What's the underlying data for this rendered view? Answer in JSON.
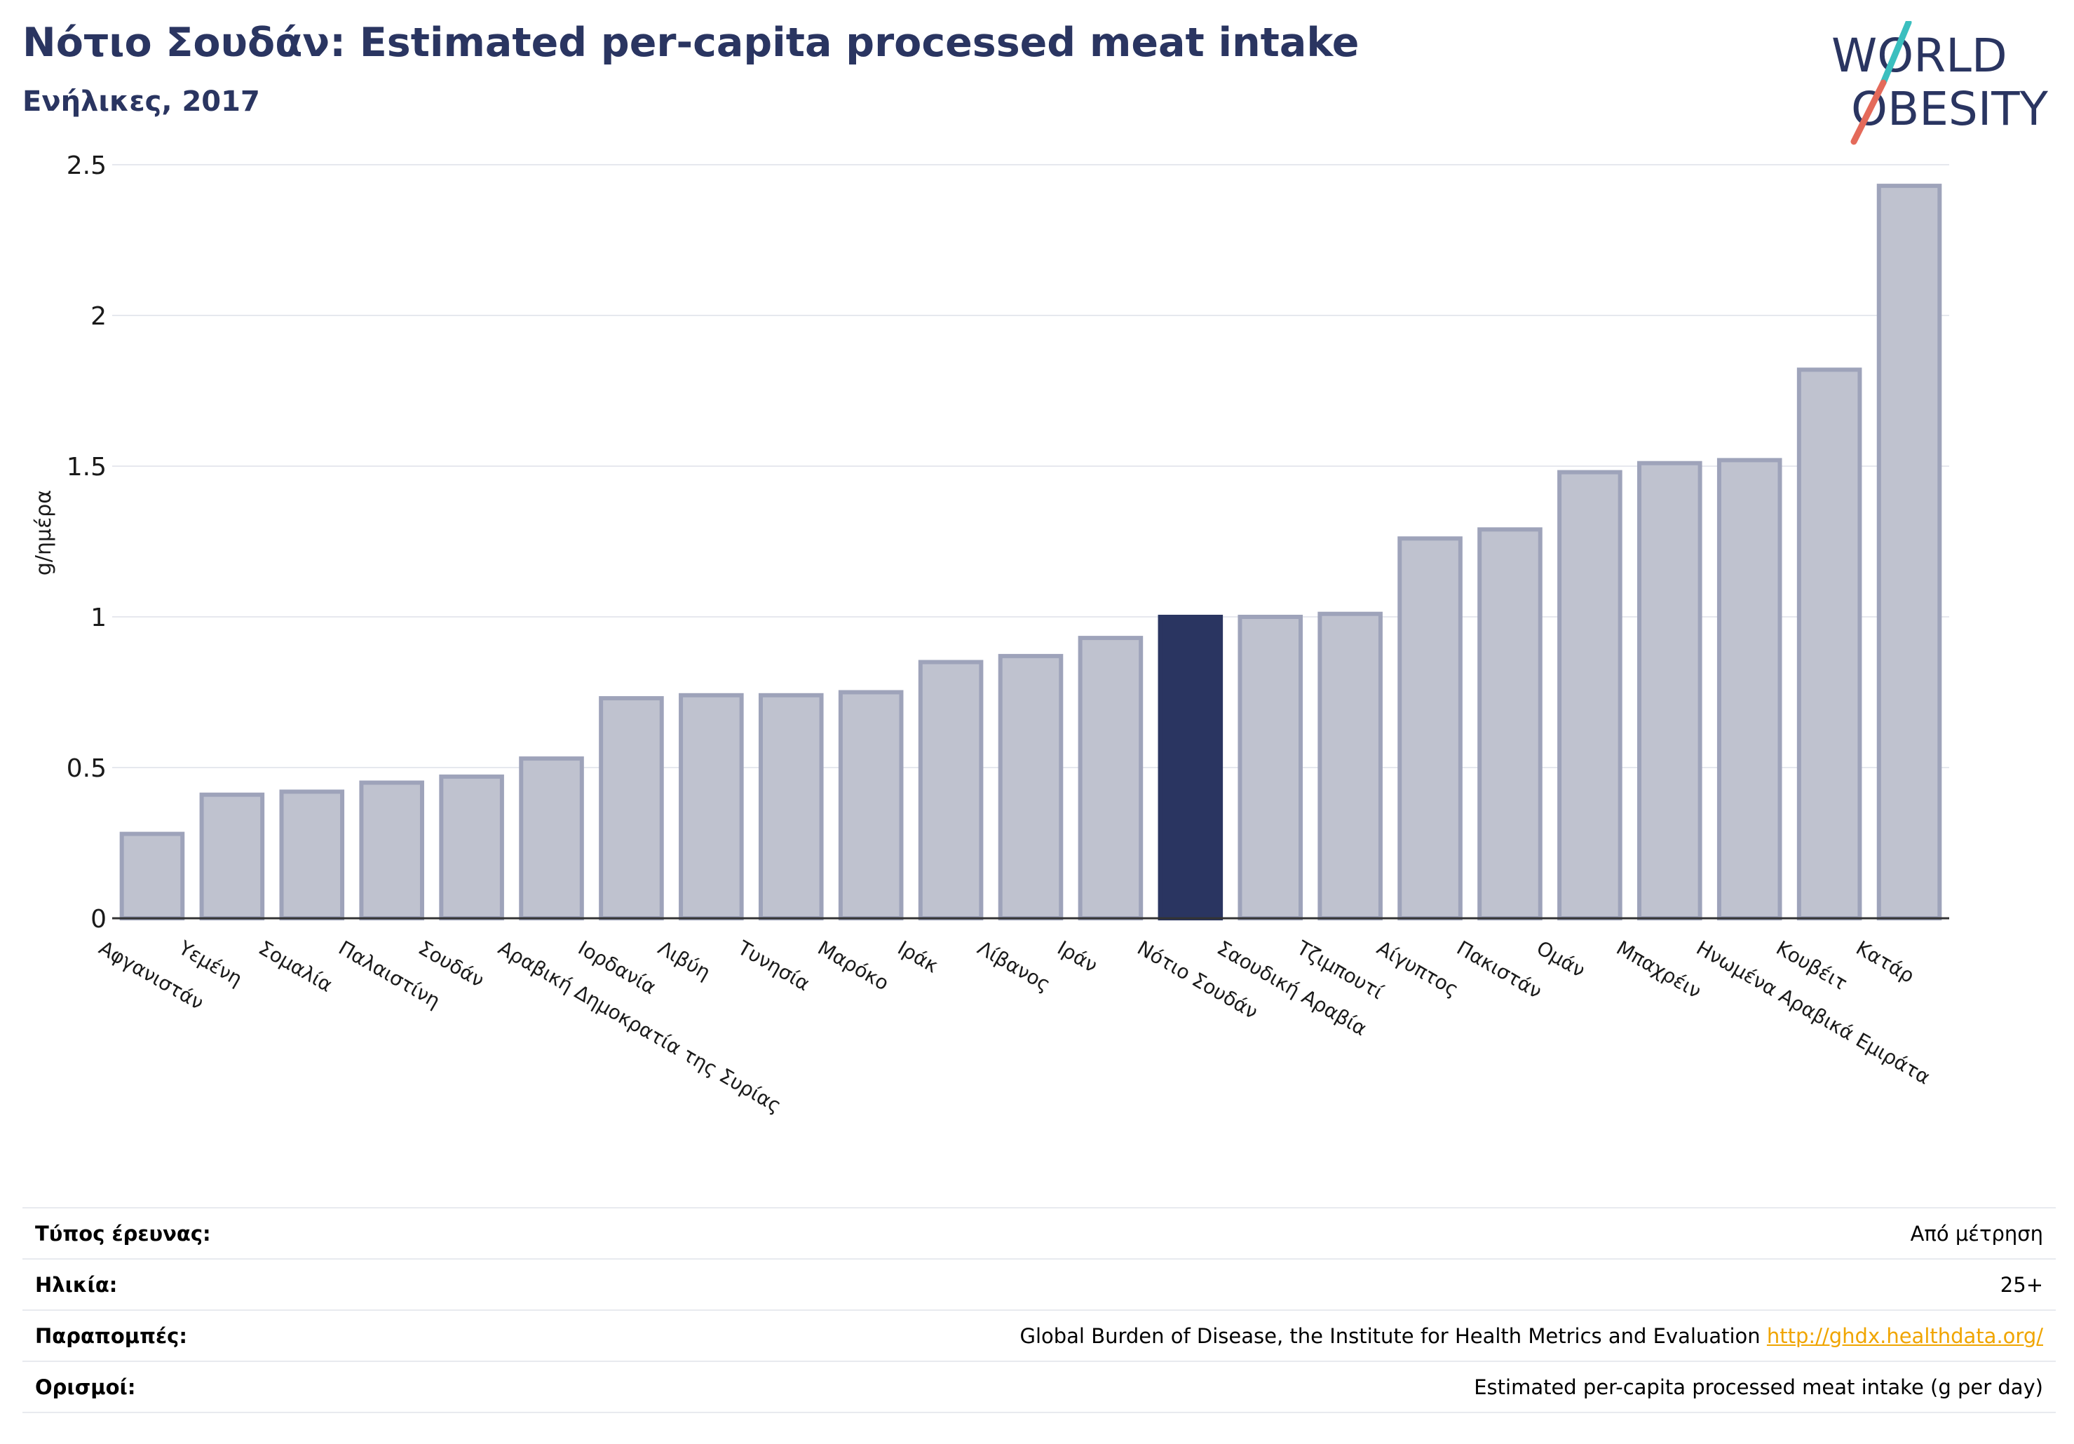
{
  "header": {
    "title": "Νότιο Σουδάν: Estimated per-capita processed meat intake",
    "subtitle": "Ενήλικες, 2017"
  },
  "logo": {
    "line1": "WORLD",
    "line2": "OBESITY"
  },
  "colors": {
    "highlight_bar": "#2a3561",
    "bar_fill": "#bfc2cf",
    "bar_stroke": "#9ea3ba",
    "title": "#2a3561",
    "logo_text": "#2a3561",
    "logo_slash_teal": "#3bbfbf",
    "logo_slash_coral": "#e46a5a",
    "link": "#f0a500"
  },
  "chart_data": {
    "type": "bar",
    "ylabel": "g/ημέρα",
    "ylim": [
      0,
      2.5
    ],
    "yticks": [
      "0",
      "0.5",
      "1",
      "1.5",
      "2",
      "2.5"
    ],
    "grid": true,
    "highlight": "Νότιο Σουδάν",
    "categories": [
      "Αφγανιστάν",
      "Υεμένη",
      "Σομαλία",
      "Παλαιστίνη",
      "Σουδάν",
      "Αραβική Δημοκρατία της Συρίας",
      "Ιορδανία",
      "Λιβύη",
      "Τυνησία",
      "Μαρόκο",
      "Ιράκ",
      "Λίβανος",
      "Ιράν",
      "Νότιο Σουδάν",
      "Σαουδική Αραβία",
      "Τζιμπουτί",
      "Αίγυπτος",
      "Πακιστάν",
      "Ομάν",
      "Μπαχρέιν",
      "Ηνωμένα Αραβικά Εμιράτα",
      "Κουβέιτ",
      "Κατάρ"
    ],
    "values": [
      0.28,
      0.41,
      0.42,
      0.45,
      0.47,
      0.53,
      0.73,
      0.74,
      0.74,
      0.75,
      0.85,
      0.87,
      0.93,
      1.0,
      1.0,
      1.01,
      1.26,
      1.29,
      1.48,
      1.51,
      1.52,
      1.82,
      2.43
    ]
  },
  "info": [
    {
      "key": "Τύπος έρευνας:",
      "value": "Από μέτρηση"
    },
    {
      "key": "Ηλικία:",
      "value": "25+"
    },
    {
      "key": "Παραπομπές:",
      "value": "Global Burden of Disease, the Institute for Health Metrics and Evaluation",
      "link": "http://ghdx.healthdata.org/"
    },
    {
      "key": "Ορισμοί:",
      "value": "Estimated per-capita processed meat intake (g per day)"
    }
  ]
}
